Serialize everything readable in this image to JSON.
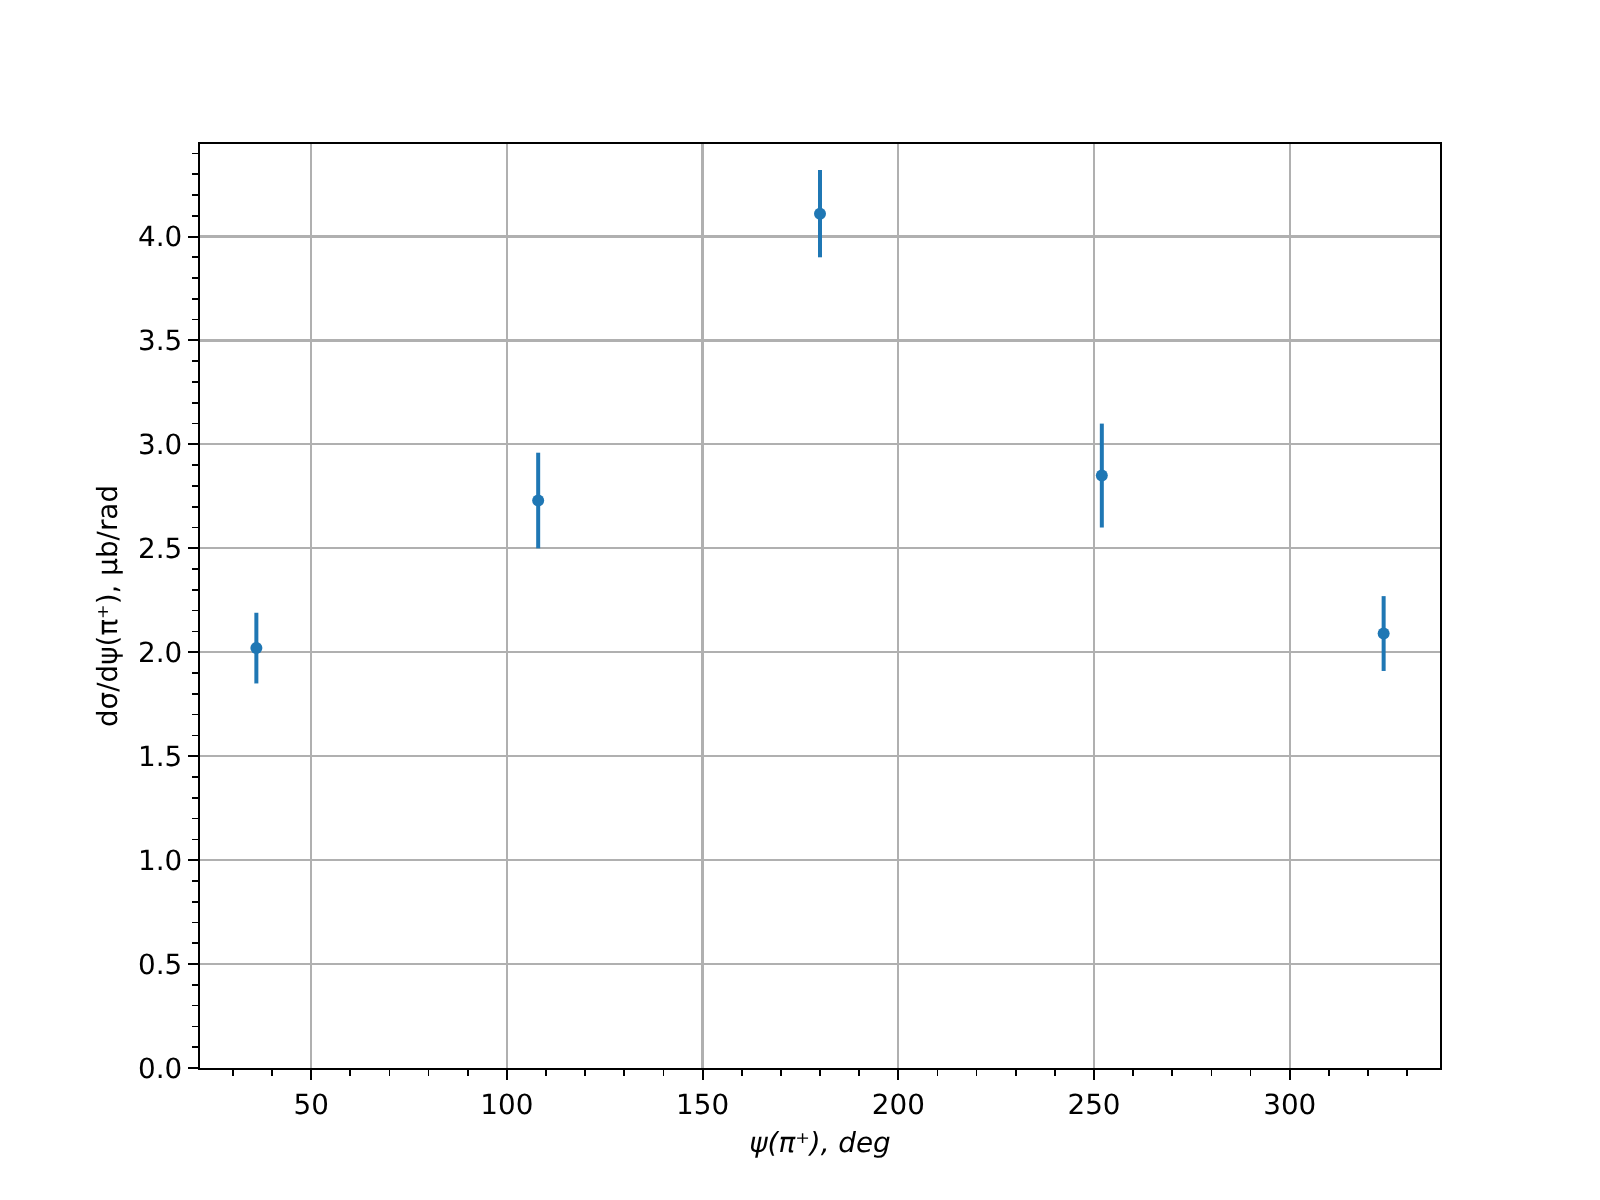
{
  "chart_data": {
    "type": "scatter",
    "xlabel": "ψ(π⁺), deg",
    "ylabel": "dσ/dψ(π⁺), μb/rad",
    "x": [
      36,
      108,
      180,
      252,
      324
    ],
    "values": [
      2.02,
      2.73,
      4.11,
      2.85,
      2.09
    ],
    "errors": [
      0.17,
      0.23,
      0.21,
      0.25,
      0.18
    ],
    "color": "#1f77b4",
    "marker": "circle",
    "xlim": [
      21.6,
      338.4
    ],
    "xticks": [
      {
        "value": 30,
        "label": null
      },
      {
        "value": 40,
        "label": null
      },
      50,
      {
        "value": 60,
        "label": null
      },
      {
        "value": 70,
        "label": null
      },
      {
        "value": 80,
        "label": null
      },
      {
        "value": 90,
        "label": null
      },
      100,
      {
        "value": 110,
        "label": null
      },
      {
        "value": 120,
        "label": null
      },
      {
        "value": 130,
        "label": null
      },
      {
        "value": 140,
        "label": null
      },
      150,
      {
        "value": 160,
        "label": null
      },
      {
        "value": 170,
        "label": null
      },
      {
        "value": 180,
        "label": null
      },
      {
        "value": 190,
        "label": null
      },
      200,
      {
        "value": 210,
        "label": null
      },
      {
        "value": 220,
        "label": null
      },
      {
        "value": 230,
        "label": null
      },
      {
        "value": 240,
        "label": null
      },
      250,
      {
        "value": 260,
        "label": null
      },
      {
        "value": 270,
        "label": null
      },
      {
        "value": 280,
        "label": null
      },
      {
        "value": 290,
        "label": null
      },
      300,
      {
        "value": 310,
        "label": null
      },
      {
        "value": 320,
        "label": null
      },
      {
        "value": 330,
        "label": null
      }
    ],
    "ylim": [
      0,
      4.445
    ],
    "yticks": [
      {
        "value": 0,
        "label": "0.0"
      },
      {
        "value": 0.1,
        "label": null
      },
      {
        "value": 0.2,
        "label": null
      },
      {
        "value": 0.3,
        "label": null
      },
      {
        "value": 0.4,
        "label": null
      },
      {
        "value": 0.5,
        "label": "0.5"
      },
      {
        "value": 0.6,
        "label": null
      },
      {
        "value": 0.7,
        "label": null
      },
      {
        "value": 0.8,
        "label": null
      },
      {
        "value": 0.9,
        "label": null
      },
      {
        "value": 1,
        "label": "1.0"
      },
      {
        "value": 1.1,
        "label": null
      },
      {
        "value": 1.2,
        "label": null
      },
      {
        "value": 1.3,
        "label": null
      },
      {
        "value": 1.4,
        "label": null
      },
      {
        "value": 1.5,
        "label": "1.5"
      },
      {
        "value": 1.6,
        "label": null
      },
      {
        "value": 1.7,
        "label": null
      },
      {
        "value": 1.8,
        "label": null
      },
      {
        "value": 1.9,
        "label": null
      },
      {
        "value": 2,
        "label": "2.0"
      },
      {
        "value": 2.1,
        "label": null
      },
      {
        "value": 2.2,
        "label": null
      },
      {
        "value": 2.3,
        "label": null
      },
      {
        "value": 2.4,
        "label": null
      },
      {
        "value": 2.5,
        "label": "2.5"
      },
      {
        "value": 2.6,
        "label": null
      },
      {
        "value": 2.7,
        "label": null
      },
      {
        "value": 2.8,
        "label": null
      },
      {
        "value": 2.9,
        "label": null
      },
      {
        "value": 3,
        "label": "3.0"
      },
      {
        "value": 3.1,
        "label": null
      },
      {
        "value": 3.2,
        "label": null
      },
      {
        "value": 3.3,
        "label": null
      },
      {
        "value": 3.4,
        "label": null
      },
      {
        "value": 3.5,
        "label": "3.5"
      },
      {
        "value": 3.6,
        "label": null
      },
      {
        "value": 3.7,
        "label": null
      },
      {
        "value": 3.8,
        "label": null
      },
      {
        "value": 3.9,
        "label": null
      },
      {
        "value": 4,
        "label": "4.0"
      },
      {
        "value": 4.1,
        "label": null
      },
      {
        "value": 4.2,
        "label": null
      },
      {
        "value": 4.3,
        "label": null
      },
      {
        "value": 4.4,
        "label": null
      }
    ],
    "grid": true
  }
}
